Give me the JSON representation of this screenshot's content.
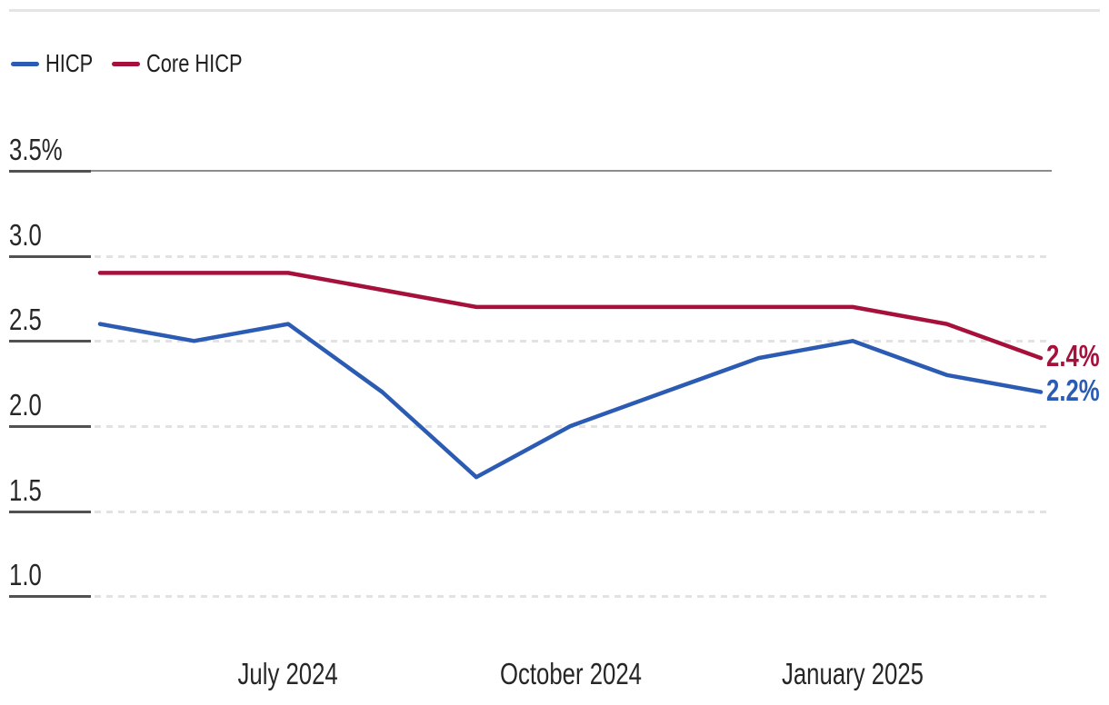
{
  "chart_data": {
    "type": "line",
    "title": "",
    "legend_position": "top-left",
    "grid": "dashed-horizontal",
    "x_axis": {
      "num_points": 11,
      "ticks": [
        {
          "index": 2,
          "label": "July 2024"
        },
        {
          "index": 5,
          "label": "October 2024"
        },
        {
          "index": 8,
          "label": "January 2025"
        }
      ]
    },
    "y_axis": {
      "range": [
        1.0,
        3.5
      ],
      "ticks": [
        {
          "value": 3.5,
          "label": "3.5%",
          "line_style": "solid"
        },
        {
          "value": 3.0,
          "label": "3.0",
          "line_style": "dashed"
        },
        {
          "value": 2.5,
          "label": "2.5",
          "line_style": "dashed"
        },
        {
          "value": 2.0,
          "label": "2.0",
          "line_style": "dashed"
        },
        {
          "value": 1.5,
          "label": "1.5",
          "line_style": "dashed"
        },
        {
          "value": 1.0,
          "label": "1.0",
          "line_style": "dashed"
        }
      ]
    },
    "series": [
      {
        "name": "HICP",
        "color": "#2B5BB3",
        "values": [
          2.6,
          2.5,
          2.6,
          2.2,
          1.7,
          2.0,
          2.2,
          2.4,
          2.5,
          2.3,
          2.2
        ],
        "end_label": "2.2%"
      },
      {
        "name": "Core HICP",
        "color": "#A6113C",
        "values": [
          2.9,
          2.9,
          2.9,
          2.8,
          2.7,
          2.7,
          2.7,
          2.7,
          2.7,
          2.6,
          2.4
        ],
        "end_label": "2.4%"
      }
    ]
  },
  "legend": {
    "items": [
      {
        "label": "HICP",
        "color": "#2B5BB3"
      },
      {
        "label": "Core HICP",
        "color": "#A6113C"
      }
    ]
  },
  "colors": {
    "background": "#ffffff",
    "top_rule": "#e4e4e4",
    "axis_tick": "#515151",
    "grid_solid": "#8c8c8c",
    "grid_dashed": "#e2e2e2",
    "text": "#262626"
  }
}
